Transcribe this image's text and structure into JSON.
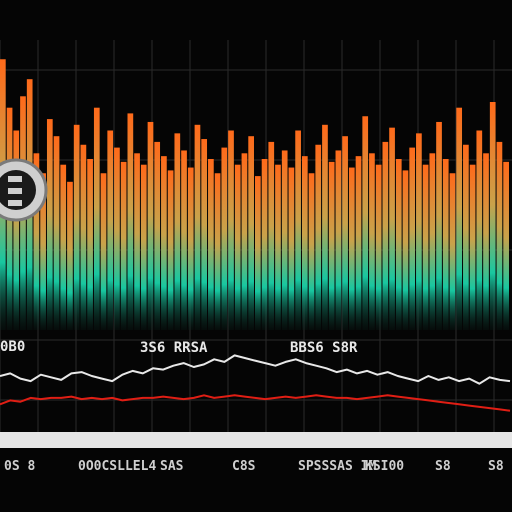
{
  "chart_data": {
    "type": "bar",
    "title": "",
    "xlabel": "",
    "ylabel": "",
    "grid": true,
    "colors": {
      "background": "#050505",
      "grid": "#2a2a2a",
      "bar_top": "#ff6a1a",
      "bar_mid": "#c9a24a",
      "bar_bottom": "#18c7a0",
      "line_1": "#e8e8e8",
      "line_2": "#e01e14",
      "coin": "#d6d6d6"
    },
    "logo": {
      "icon": "bitcoin-coin-icon"
    },
    "annotations": [
      {
        "text": "0B0",
        "kind": "axis-label-left"
      },
      {
        "text": "3S6 RRSA",
        "kind": "chart-label"
      },
      {
        "text": "BBS6 S8R",
        "kind": "chart-label"
      }
    ],
    "bars": {
      "name": "",
      "values": [
        95,
        78,
        70,
        82,
        88,
        62,
        55,
        74,
        68,
        58,
        52,
        72,
        65,
        60,
        78,
        55,
        70,
        64,
        59,
        76,
        62,
        58,
        73,
        66,
        61,
        56,
        69,
        63,
        57,
        72,
        67,
        60,
        55,
        64,
        70,
        58,
        62,
        68,
        54,
        60,
        66,
        58,
        63,
        57,
        70,
        61,
        55,
        65,
        72,
        59,
        63,
        68,
        57,
        61,
        75,
        62,
        58,
        66,
        71,
        60,
        56,
        64,
        69,
        58,
        62,
        73,
        60,
        55,
        78,
        65,
        58,
        70,
        62,
        80,
        66,
        59
      ]
    },
    "series": [
      {
        "name": "",
        "values": [
          42,
          44,
          40,
          38,
          43,
          41,
          39,
          44,
          45,
          42,
          40,
          38,
          43,
          46,
          44,
          48,
          47,
          50,
          52,
          49,
          51,
          55,
          53,
          58,
          56,
          54,
          52,
          50,
          53,
          55,
          52,
          50,
          48,
          45,
          47,
          44,
          46,
          43,
          45,
          42,
          40,
          38,
          42,
          39,
          41,
          38,
          40,
          36,
          41,
          39,
          38
        ]
      },
      {
        "name": "",
        "values": [
          20,
          23,
          22,
          25,
          24,
          25,
          25,
          26,
          24,
          25,
          24,
          25,
          23,
          24,
          25,
          25,
          26,
          25,
          24,
          25,
          27,
          25,
          26,
          27,
          26,
          25,
          24,
          25,
          26,
          25,
          26,
          27,
          26,
          25,
          25,
          24,
          25,
          26,
          27,
          26,
          25,
          24,
          23,
          22,
          21,
          20,
          19,
          18,
          17,
          16,
          15
        ]
      }
    ],
    "tick_labels": [
      "0S 8",
      "0O0CSLLEL4",
      "SAS",
      "C8S",
      "SPSSSAS IM",
      "KSI00",
      "S8",
      "S8"
    ]
  }
}
